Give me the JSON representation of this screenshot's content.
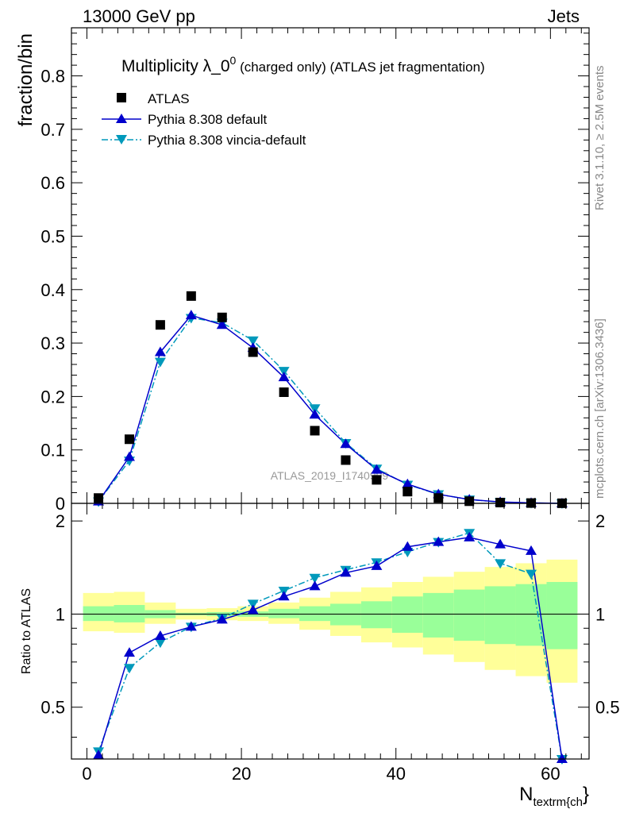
{
  "header": {
    "left": "13000 GeV pp",
    "right": "Jets"
  },
  "side_labels": {
    "rivet": "Rivet 3.1.10, ≥ 2.5M events",
    "mcplots": "mcplots.cern.ch [arXiv:1306.3436]"
  },
  "watermark": "ATLAS_2019_I1740909",
  "colors": {
    "data": "#000000",
    "default": "#0000cc",
    "vincia": "#0099bb",
    "band_inner": "#99ff99",
    "band_outer": "#ffff99"
  },
  "chart_data": [
    {
      "type": "scatter",
      "title_main": "Multiplicity λ_0",
      "title_sup": "0",
      "title_rest": " (charged only) (ATLAS jet fragmentation)",
      "ylabel": "fraction/bin",
      "xlim": [
        -2,
        65
      ],
      "ylim": [
        0,
        0.89
      ],
      "yticks": [
        "0",
        "0.1",
        "0.2",
        "0.3",
        "0.4",
        "0.5",
        "0.6",
        "0.7",
        "0.8"
      ],
      "x": [
        1.5,
        5.5,
        9.5,
        13.5,
        17.5,
        21.5,
        25.5,
        29.5,
        33.5,
        37.5,
        41.5,
        45.5,
        49.5,
        53.5,
        57.5,
        61.5
      ],
      "series": [
        {
          "name": "ATLAS",
          "values": [
            0.01,
            0.12,
            0.334,
            0.388,
            0.348,
            0.283,
            0.208,
            0.136,
            0.081,
            0.044,
            0.022,
            0.01,
            0.004,
            0.0015,
            0.0006,
            0.0002
          ]
        },
        {
          "name": "Pythia 8.308 default",
          "values": [
            0.0035,
            0.087,
            0.283,
            0.352,
            0.334,
            0.291,
            0.236,
            0.166,
            0.111,
            0.063,
            0.036,
            0.017,
            0.0072,
            0.0026,
            0.001,
            7e-05
          ]
        },
        {
          "name": "Pythia 8.308 vincia-default",
          "values": [
            0.0035,
            0.08,
            0.265,
            0.347,
            0.338,
            0.305,
            0.248,
            0.178,
            0.113,
            0.065,
            0.035,
            0.017,
            0.0072,
            0.0022,
            0.0008,
            7e-05
          ]
        }
      ]
    },
    {
      "type": "line",
      "ylabel": "Ratio to ATLAS",
      "xlabel": "N",
      "xlabel_sub": "textrm{ch",
      "xlabel_close": "}",
      "xlim": [
        -2,
        65
      ],
      "ylim": [
        0.34,
        2.28
      ],
      "xticks": [
        "0",
        "20",
        "40",
        "60"
      ],
      "yticks": [
        "0.5",
        "1",
        "2"
      ],
      "bins": [
        [
          -0.5,
          3.5
        ],
        [
          3.5,
          7.5
        ],
        [
          7.5,
          11.5
        ],
        [
          11.5,
          15.5
        ],
        [
          15.5,
          19.5
        ],
        [
          19.5,
          23.5
        ],
        [
          23.5,
          27.5
        ],
        [
          27.5,
          31.5
        ],
        [
          31.5,
          35.5
        ],
        [
          35.5,
          39.5
        ],
        [
          39.5,
          43.5
        ],
        [
          43.5,
          47.5
        ],
        [
          47.5,
          51.5
        ],
        [
          51.5,
          55.5
        ],
        [
          55.5,
          59.5
        ],
        [
          59.5,
          63.5
        ]
      ],
      "band_inner": [
        [
          0.95,
          1.06
        ],
        [
          0.94,
          1.07
        ],
        [
          0.97,
          1.03
        ],
        [
          0.99,
          1.01
        ],
        [
          0.985,
          1.015
        ],
        [
          0.98,
          1.02
        ],
        [
          0.97,
          1.04
        ],
        [
          0.95,
          1.06
        ],
        [
          0.92,
          1.08
        ],
        [
          0.9,
          1.1
        ],
        [
          0.87,
          1.14
        ],
        [
          0.84,
          1.17
        ],
        [
          0.82,
          1.2
        ],
        [
          0.8,
          1.23
        ],
        [
          0.79,
          1.25
        ],
        [
          0.77,
          1.27
        ]
      ],
      "band_outer": [
        [
          0.88,
          1.17
        ],
        [
          0.87,
          1.18
        ],
        [
          0.93,
          1.09
        ],
        [
          0.96,
          1.04
        ],
        [
          0.955,
          1.045
        ],
        [
          0.95,
          1.06
        ],
        [
          0.93,
          1.09
        ],
        [
          0.89,
          1.13
        ],
        [
          0.85,
          1.18
        ],
        [
          0.81,
          1.22
        ],
        [
          0.78,
          1.27
        ],
        [
          0.74,
          1.32
        ],
        [
          0.7,
          1.37
        ],
        [
          0.66,
          1.42
        ],
        [
          0.63,
          1.46
        ],
        [
          0.6,
          1.5
        ]
      ],
      "x": [
        1.5,
        5.5,
        9.5,
        13.5,
        17.5,
        21.5,
        25.5,
        29.5,
        33.5,
        37.5,
        41.5,
        45.5,
        49.5,
        53.5,
        57.5,
        61.5
      ],
      "series": [
        {
          "name": "Pythia 8.308 default",
          "values": [
            0.35,
            0.75,
            0.85,
            0.91,
            0.96,
            1.03,
            1.14,
            1.23,
            1.36,
            1.43,
            1.65,
            1.71,
            1.77,
            1.68,
            1.6,
            0.33
          ]
        },
        {
          "name": "Pythia 8.308 vincia-default",
          "values": [
            0.36,
            0.67,
            0.81,
            0.91,
            0.97,
            1.08,
            1.19,
            1.31,
            1.39,
            1.47,
            1.59,
            1.71,
            1.83,
            1.46,
            1.35,
            0.33
          ]
        }
      ]
    }
  ]
}
